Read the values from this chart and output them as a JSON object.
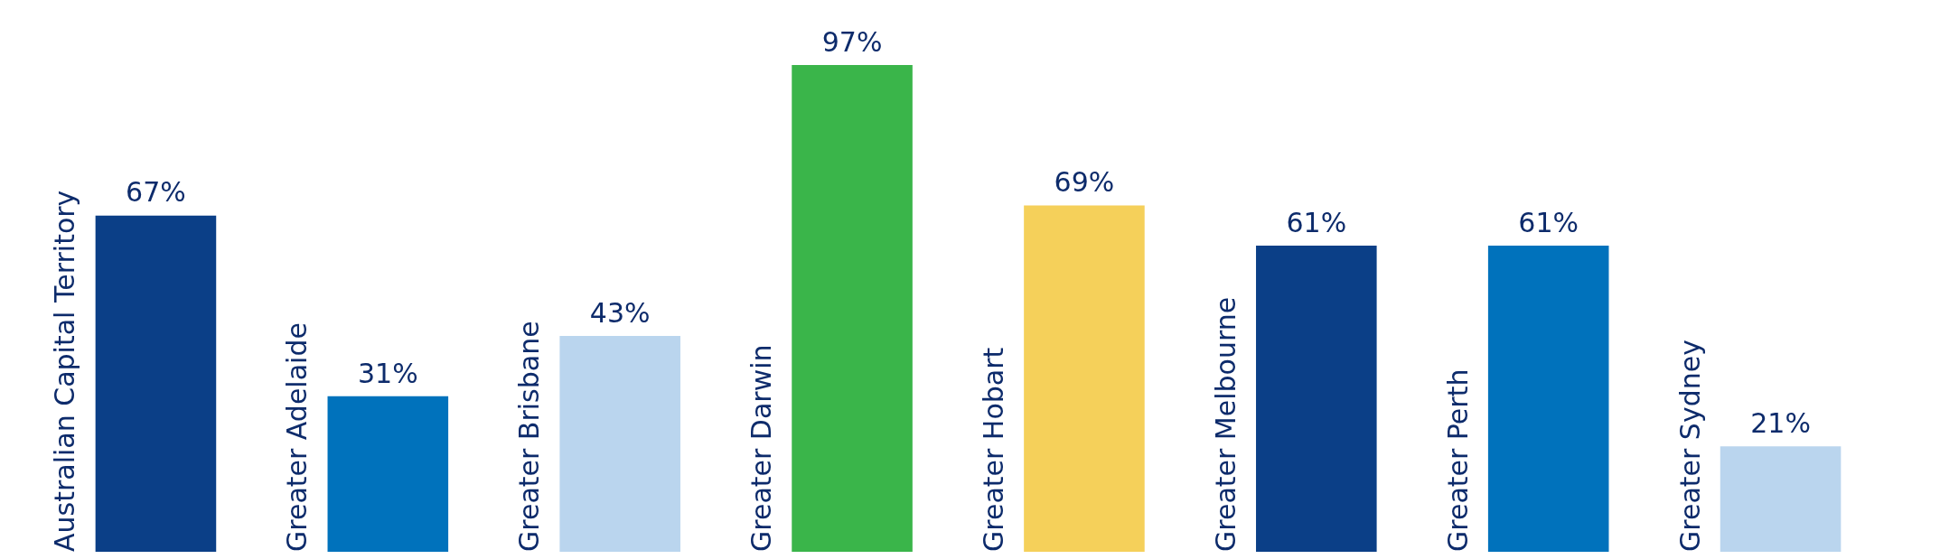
{
  "chart_data": {
    "type": "bar",
    "categories": [
      "Australian Capital Territory",
      "Greater Adelaide",
      "Greater Brisbane",
      "Greater Darwin",
      "Greater Hobart",
      "Greater Melbourne",
      "Greater Perth",
      "Greater Sydney"
    ],
    "values": [
      67,
      31,
      43,
      97,
      69,
      61,
      61,
      21
    ],
    "colors": [
      "#0b3f87",
      "#0072bc",
      "#bad5ee",
      "#3ab54a",
      "#f5d05a",
      "#0b3f87",
      "#0072bc",
      "#bad5ee"
    ],
    "value_labels": [
      "67%",
      "31%",
      "43%",
      "97%",
      "69%",
      "61%",
      "61%",
      "21%"
    ],
    "tick_labels": false
  }
}
